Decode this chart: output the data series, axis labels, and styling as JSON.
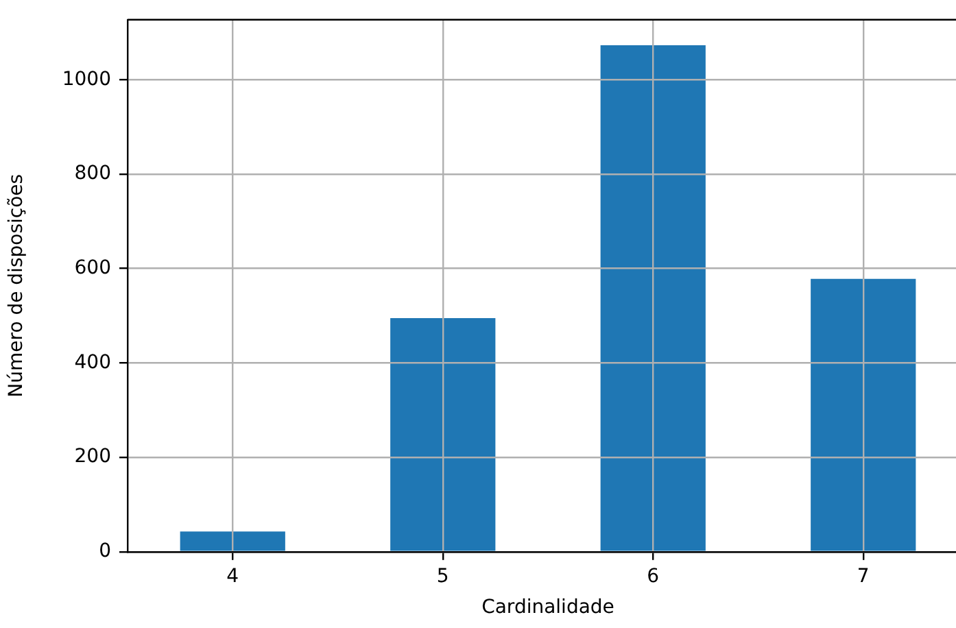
{
  "chart_data": {
    "type": "bar",
    "xlabel": "Cardinalidade",
    "ylabel": "Número de disposições",
    "categories": [
      "4",
      "5",
      "6",
      "7"
    ],
    "values": [
      43,
      495,
      1073,
      578
    ],
    "color": "#1f77b4",
    "ylim": [
      0,
      1127
    ],
    "yticks": [
      0,
      200,
      400,
      600,
      800,
      1000
    ],
    "grid": true
  }
}
